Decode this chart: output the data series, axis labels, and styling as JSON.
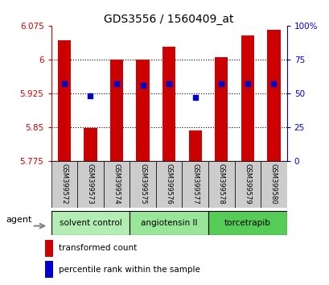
{
  "title": "GDS3556 / 1560409_at",
  "samples": [
    "GSM399572",
    "GSM399573",
    "GSM399574",
    "GSM399575",
    "GSM399576",
    "GSM399577",
    "GSM399578",
    "GSM399579",
    "GSM399580"
  ],
  "transformed_count": [
    6.042,
    5.848,
    6.0,
    6.0,
    6.028,
    5.843,
    6.005,
    6.053,
    6.065
  ],
  "percentile_rank": [
    57,
    48,
    57,
    56,
    57,
    47,
    57,
    57,
    57
  ],
  "ymin": 5.775,
  "ymax": 6.075,
  "yticks": [
    5.775,
    5.85,
    5.925,
    6.0,
    6.075
  ],
  "ytick_labels": [
    "5.775",
    "5.85",
    "5.925",
    "6",
    "6.075"
  ],
  "right_yticks": [
    0,
    25,
    50,
    75,
    100
  ],
  "right_ytick_labels": [
    "0",
    "25",
    "50",
    "75",
    "100%"
  ],
  "groups": [
    {
      "name": "solvent control",
      "indices": [
        0,
        1,
        2
      ],
      "color": "#b3edb3"
    },
    {
      "name": "angiotensin II",
      "indices": [
        3,
        4,
        5
      ],
      "color": "#99e699"
    },
    {
      "name": "torcetrapib",
      "indices": [
        6,
        7,
        8
      ],
      "color": "#55cc55"
    }
  ],
  "bar_color": "#cc0000",
  "dot_color": "#0000cc",
  "bar_width": 0.5,
  "dot_size": 18,
  "left_axis_color": "#cc0000",
  "right_axis_color": "#0000cc",
  "xlabel_area_color": "#cccccc",
  "agent_label": "agent",
  "legend_items": [
    "transformed count",
    "percentile rank within the sample"
  ],
  "legend_colors": [
    "#cc0000",
    "#0000cc"
  ]
}
